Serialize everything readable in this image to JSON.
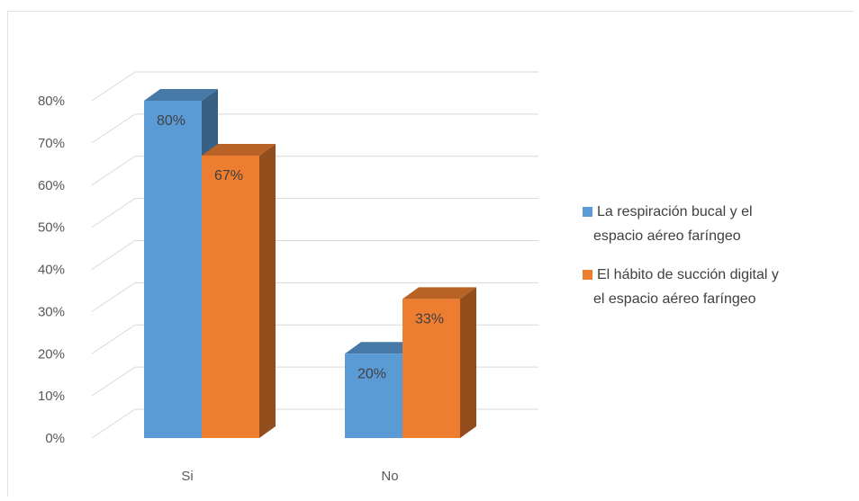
{
  "chart_data": {
    "type": "bar",
    "categories": [
      "Si",
      "No"
    ],
    "series": [
      {
        "name": "La respiración bucal y el espacio aéreo faríngeo",
        "legend_lines": [
          "La respiración bucal y el",
          "espacio aéreo faríngeo"
        ],
        "values": [
          80,
          20
        ],
        "labels": [
          "80%",
          "20%"
        ],
        "color": "#5B9BD5"
      },
      {
        "name": "El hábito de succión digital y el espacio aéreo faríngeo",
        "legend_lines": [
          "El hábito de succión digital y",
          "el espacio aéreo faríngeo"
        ],
        "values": [
          67,
          33
        ],
        "labels": [
          "67%",
          "33%"
        ],
        "color": "#ED7D31"
      }
    ],
    "y_ticks": [
      "0%",
      "10%",
      "20%",
      "30%",
      "40%",
      "50%",
      "60%",
      "70%",
      "80%"
    ],
    "ylim": [
      0,
      80
    ],
    "grid": true,
    "legend_position": "right",
    "style": "3d-clustered-column"
  }
}
